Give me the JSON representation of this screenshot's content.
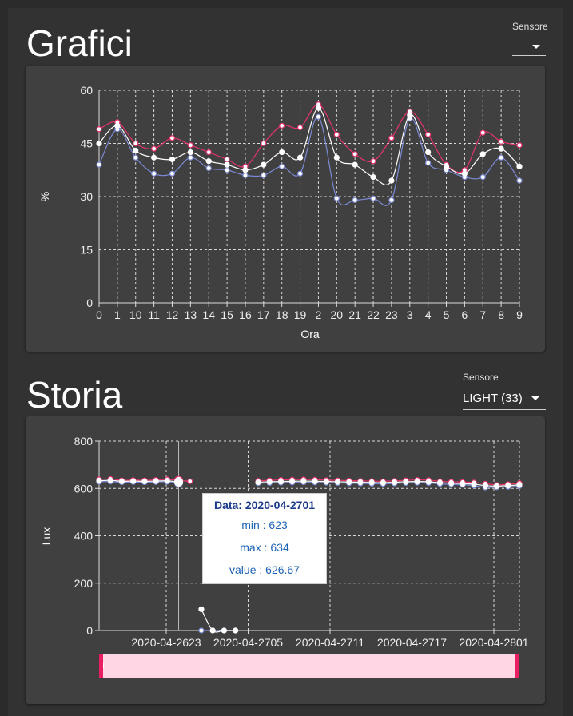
{
  "grafici": {
    "title": "Grafici",
    "sensor_select": {
      "label": "Sensore",
      "value": ""
    }
  },
  "storia": {
    "title": "Storia",
    "sensor_select": {
      "label": "Sensore",
      "value": "LIGHT (33)"
    }
  },
  "colors": {
    "max": "#e8336b",
    "avg": "#ffffff",
    "min": "#7d8bd6",
    "slider_fill": "#ffd6e3",
    "slider_border": "#e91e63"
  },
  "chart_data": [
    {
      "type": "line",
      "xlabel": "Ora",
      "ylabel": "%",
      "categories": [
        "0",
        "1",
        "10",
        "11",
        "12",
        "13",
        "14",
        "15",
        "16",
        "17",
        "18",
        "19",
        "2",
        "20",
        "21",
        "22",
        "23",
        "3",
        "4",
        "5",
        "6",
        "7",
        "8",
        "9"
      ],
      "yticks": [
        "60",
        "45",
        "30",
        "15",
        "0"
      ],
      "ylim": [
        0,
        60
      ],
      "grid": true,
      "series": [
        {
          "key": "max",
          "values": [
            49,
            51,
            45,
            43.5,
            46.5,
            44.5,
            42.5,
            40.5,
            38.5,
            45,
            50,
            49.5,
            56,
            47.5,
            42,
            40,
            46.5,
            54,
            47.5,
            39,
            37.5,
            48,
            45.5,
            44.5
          ]
        },
        {
          "key": "avg",
          "values": [
            45,
            50,
            43,
            41,
            40.5,
            42.5,
            40,
            39,
            37.5,
            39,
            42.5,
            41,
            55,
            41,
            39,
            35.5,
            34.5,
            53,
            42.5,
            38.5,
            36.5,
            42,
            43.5,
            38.5
          ]
        },
        {
          "key": "min",
          "values": [
            39,
            49,
            41,
            36.5,
            36.5,
            41,
            38,
            37.5,
            36,
            36,
            38.5,
            36.5,
            52.5,
            29.5,
            29,
            29.5,
            29,
            52,
            39.5,
            37.5,
            35.5,
            35.5,
            41,
            34.5
          ]
        }
      ]
    },
    {
      "type": "line",
      "ylabel": "Lux",
      "yticks": [
        "800",
        "600",
        "400",
        "200",
        "0"
      ],
      "ylim": [
        0,
        800
      ],
      "xticks": [
        "2020-04-2623",
        "2020-04-2705",
        "2020-04-2711",
        "2020-04-2717",
        "2020-04-2801"
      ],
      "grid": true,
      "series": [
        {
          "key": "max",
          "values": [
            638,
            640,
            634,
            635,
            634,
            636,
            638,
            634,
            630,
            null,
            null,
            null,
            null,
            null,
            632,
            634,
            636,
            637,
            638,
            637,
            635,
            634,
            633,
            632,
            631,
            630,
            632,
            634,
            636,
            635,
            630,
            628,
            627,
            625,
            620,
            615,
            618,
            622
          ]
        },
        {
          "key": "avg",
          "values": [
            632,
            634,
            630,
            631,
            630,
            631,
            632,
            627,
            null,
            90,
            0,
            0,
            0,
            null,
            626,
            628,
            629,
            630,
            631,
            630,
            629,
            628,
            627,
            626,
            625,
            624,
            626,
            628,
            629,
            628,
            624,
            622,
            620,
            618,
            612,
            610,
            612,
            615
          ]
        },
        {
          "key": "min",
          "values": [
            628,
            629,
            626,
            627,
            626,
            627,
            628,
            623,
            null,
            0,
            0,
            0,
            0,
            null,
            622,
            623,
            624,
            625,
            626,
            625,
            624,
            623,
            622,
            621,
            620,
            619,
            621,
            623,
            624,
            623,
            619,
            617,
            615,
            612,
            604,
            605,
            607,
            610
          ]
        }
      ],
      "tooltip": {
        "title": "Data: 2020-04-2701",
        "min": "min : 623",
        "max": "max : 634",
        "value": "value : 626.67"
      }
    }
  ]
}
